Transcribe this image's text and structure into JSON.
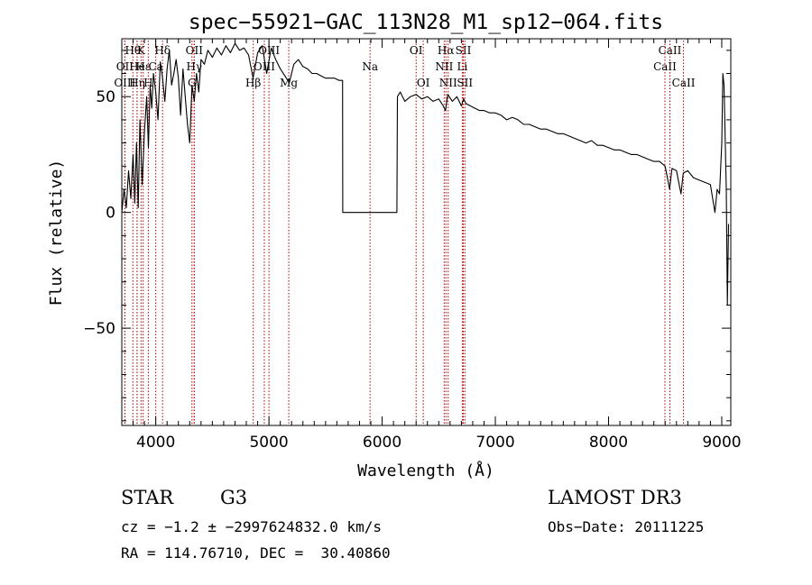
{
  "chart_data": {
    "type": "line",
    "title": "spec−55921−GAC_113N28_M1_sp12−064.fits",
    "xlabel": "Wavelength (Å)",
    "ylabel": "Flux (relative)",
    "xlim": [
      3700,
      9080
    ],
    "ylim": [
      -92,
      75
    ],
    "xticks": [
      4000,
      5000,
      6000,
      7000,
      8000,
      9000
    ],
    "yticks": [
      -50,
      0,
      50
    ],
    "xtick_labels": [
      "4000",
      "5000",
      "6000",
      "7000",
      "8000",
      "9000"
    ],
    "ytick_labels": [
      "−50",
      "0",
      "50"
    ],
    "grid": false,
    "line_color": "#000000",
    "marker_color": "#b00000",
    "spectrum": {
      "x": [
        3700,
        3720,
        3740,
        3760,
        3780,
        3800,
        3815,
        3830,
        3845,
        3860,
        3880,
        3900,
        3920,
        3935,
        3950,
        3965,
        3980,
        4000,
        4020,
        4040,
        4060,
        4080,
        4100,
        4120,
        4140,
        4160,
        4180,
        4200,
        4220,
        4240,
        4260,
        4280,
        4300,
        4320,
        4340,
        4360,
        4380,
        4400,
        4430,
        4460,
        4500,
        4540,
        4580,
        4620,
        4660,
        4700,
        4740,
        4780,
        4820,
        4860,
        4900,
        4940,
        4980,
        5020,
        5060,
        5100,
        5140,
        5180,
        5220,
        5260,
        5300,
        5340,
        5380,
        5420,
        5460,
        5500,
        5540,
        5580,
        5620,
        5650,
        5652,
        5700,
        5800,
        5900,
        6000,
        6100,
        6130,
        6135,
        6160,
        6200,
        6250,
        6300,
        6350,
        6400,
        6450,
        6500,
        6540,
        6560,
        6580,
        6620,
        6660,
        6700,
        6720,
        6740,
        6780,
        6820,
        6860,
        6900,
        6950,
        7000,
        7050,
        7100,
        7150,
        7200,
        7250,
        7300,
        7350,
        7400,
        7450,
        7500,
        7550,
        7600,
        7650,
        7700,
        7750,
        7800,
        7850,
        7900,
        7950,
        8000,
        8050,
        8100,
        8150,
        8200,
        8250,
        8300,
        8350,
        8400,
        8450,
        8500,
        8540,
        8560,
        8600,
        8640,
        8660,
        8700,
        8750,
        8800,
        8850,
        8900,
        8940,
        8960,
        8980,
        9000,
        9010,
        9020,
        9040,
        9050,
        9060
      ],
      "y": [
        0,
        10,
        2,
        18,
        6,
        25,
        4,
        30,
        2,
        40,
        12,
        35,
        50,
        28,
        55,
        45,
        60,
        52,
        40,
        65,
        58,
        48,
        62,
        70,
        55,
        60,
        66,
        58,
        42,
        62,
        50,
        38,
        30,
        55,
        48,
        60,
        52,
        66,
        64,
        70,
        67,
        71,
        68,
        72,
        69,
        73,
        70,
        71,
        68,
        58,
        69,
        72,
        60,
        71,
        66,
        62,
        59,
        56,
        64,
        66,
        63,
        62,
        60,
        60,
        59,
        58,
        58,
        58,
        57,
        57,
        0,
        0,
        0,
        0,
        0,
        0,
        0,
        50,
        52,
        48,
        50,
        51,
        49,
        50,
        48,
        49,
        46,
        44,
        51,
        48,
        50,
        46,
        49,
        47,
        46,
        45,
        44,
        44,
        43,
        43,
        42,
        40,
        41,
        40,
        38,
        38,
        37,
        36,
        36,
        35,
        34,
        34,
        33,
        32,
        31,
        30,
        31,
        29,
        29,
        28,
        27,
        27,
        26,
        25,
        25,
        24,
        23,
        22,
        22,
        20,
        10,
        19,
        18,
        8,
        17,
        18,
        15,
        14,
        13,
        12,
        0,
        10,
        8,
        30,
        60,
        55,
        10,
        -40,
        -5
      ]
    },
    "lines": [
      {
        "label": "Hθ",
        "x": 3798,
        "row": 0
      },
      {
        "label": "OII",
        "x": 3727,
        "row": 1
      },
      {
        "label": "OIII",
        "x": 3727,
        "row": 2
      },
      {
        "label": "K",
        "x": 3870,
        "row": 0
      },
      {
        "label": "He",
        "x": 3835,
        "row": 1
      },
      {
        "label": "Hη",
        "x": 3835,
        "row": 2
      },
      {
        "label": "Hε",
        "x": 3889,
        "row": 1
      },
      {
        "label": "H",
        "x": 3934,
        "row": 2
      },
      {
        "label": "Hδ",
        "x": 4060,
        "row": 0
      },
      {
        "label": "Ca",
        "x": 4000,
        "row": 1
      },
      {
        "label": "OII",
        "x": 4340,
        "row": 0
      },
      {
        "label": "Hγ",
        "x": 4340,
        "row": 1
      },
      {
        "label": "G",
        "x": 4320,
        "row": 2
      },
      {
        "label": "OIII",
        "x": 5000,
        "row": 0
      },
      {
        "label": "OIII",
        "x": 4959,
        "row": 1
      },
      {
        "label": "Hβ",
        "x": 4861,
        "row": 2
      },
      {
        "label": "Mg",
        "x": 5175,
        "row": 2
      },
      {
        "label": "Na",
        "x": 5893,
        "row": 1
      },
      {
        "label": "OI",
        "x": 6300,
        "row": 0
      },
      {
        "label": "OI",
        "x": 6363,
        "row": 2
      },
      {
        "label": "Hα",
        "x": 6563,
        "row": 0
      },
      {
        "label": "NII",
        "x": 6548,
        "row": 1
      },
      {
        "label": "NII",
        "x": 6583,
        "row": 2
      },
      {
        "label": "SII",
        "x": 6717,
        "row": 0
      },
      {
        "label": "Li",
        "x": 6708,
        "row": 1
      },
      {
        "label": "SII",
        "x": 6731,
        "row": 2
      },
      {
        "label": "CaII",
        "x": 8542,
        "row": 0
      },
      {
        "label": "CaII",
        "x": 8498,
        "row": 1
      },
      {
        "label": "CaII",
        "x": 8662,
        "row": 2
      }
    ]
  },
  "info": {
    "class": "STAR",
    "subclass": "G3",
    "survey": "LAMOST DR3",
    "cz": "cz = −1.2 ± −2997624832.0 km/s",
    "obsdate": "Obs−Date: 20111225",
    "radec": "RA = 114.76710, DEC =  30.40860"
  }
}
